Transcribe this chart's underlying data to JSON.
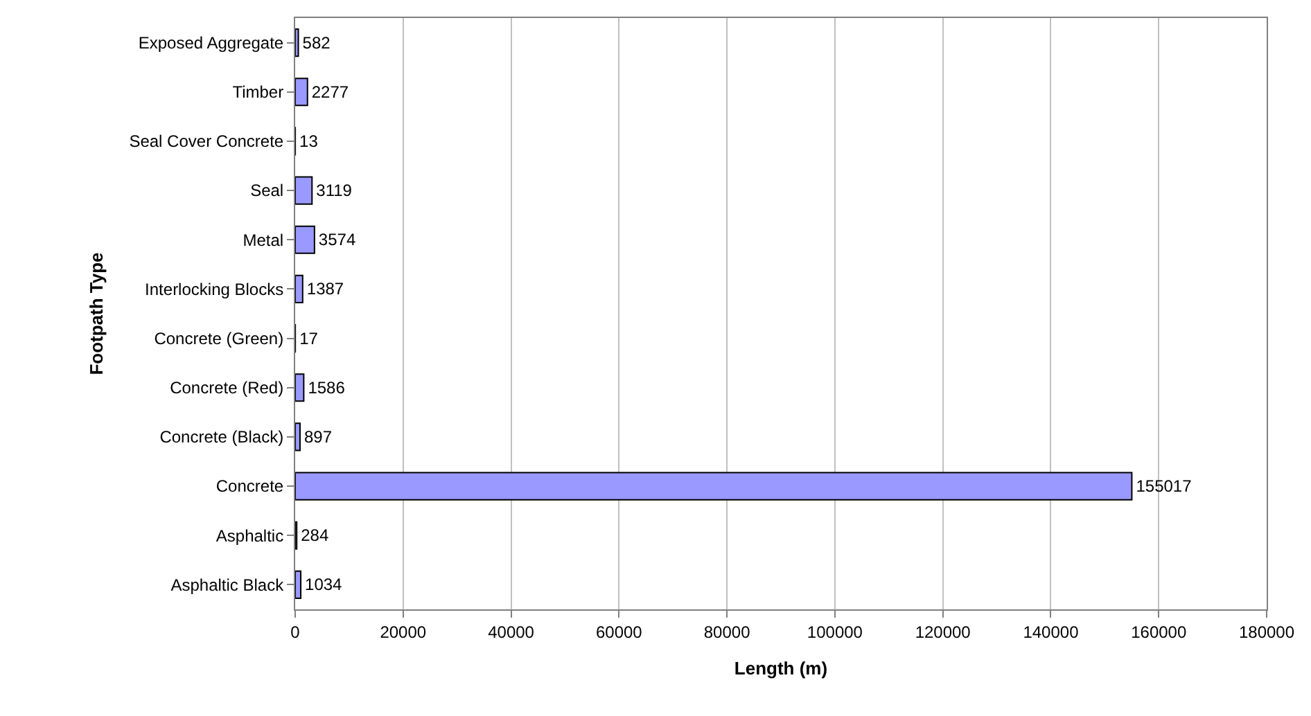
{
  "chart_data": {
    "type": "bar",
    "orientation": "horizontal",
    "xlabel": "Length (m)",
    "ylabel": "Footpath Type",
    "categories": [
      "Exposed Aggregate",
      "Timber",
      "Seal Cover Concrete",
      "Seal",
      "Metal",
      "Interlocking Blocks",
      "Concrete (Green)",
      "Concrete (Red)",
      "Concrete (Black)",
      "Concrete",
      "Asphaltic",
      "Asphaltic Black"
    ],
    "values": [
      582,
      2277,
      13,
      3119,
      3574,
      1387,
      17,
      1586,
      897,
      155017,
      284,
      1034
    ],
    "color": "#9999ff",
    "xlim": [
      0,
      180000
    ],
    "xticks": [
      0,
      20000,
      40000,
      60000,
      80000,
      100000,
      120000,
      140000,
      160000,
      180000
    ],
    "grid": "x",
    "legend": false,
    "data_labels": true
  }
}
